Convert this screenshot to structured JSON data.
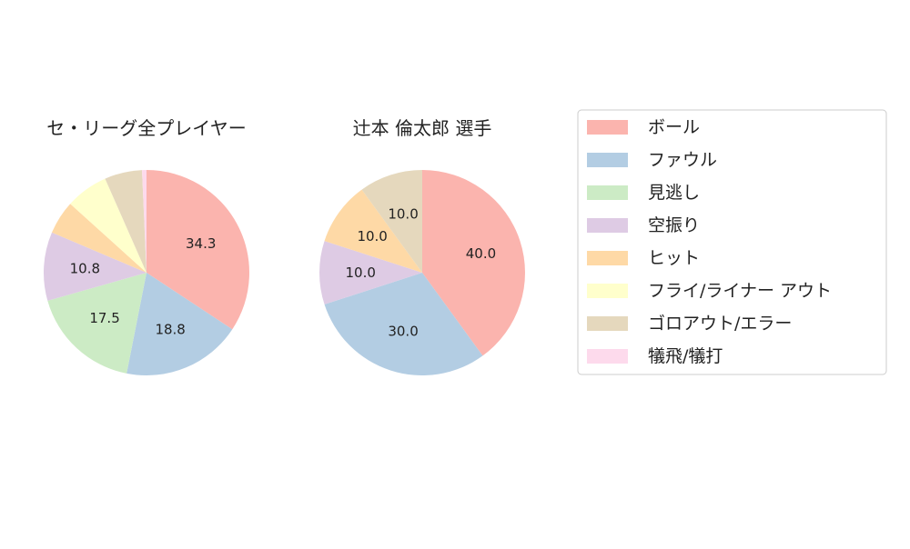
{
  "colors": {
    "ball": "#fbb4ae",
    "foul": "#b3cde3",
    "looking_strike": "#ccebc5",
    "swinging_strike": "#decbe4",
    "hit": "#fed9a6",
    "fly_liner_out": "#ffffcc",
    "ground_out_error": "#e5d8bd",
    "sacrifice": "#fddaec"
  },
  "legend": {
    "items": [
      {
        "label": "ボール",
        "color": "#fbb4ae"
      },
      {
        "label": "ファウル",
        "color": "#b3cde3"
      },
      {
        "label": "見逃し",
        "color": "#ccebc5"
      },
      {
        "label": "空振り",
        "color": "#decbe4"
      },
      {
        "label": "ヒット",
        "color": "#fed9a6"
      },
      {
        "label": "フライ/ライナー アウト",
        "color": "#ffffcc"
      },
      {
        "label": "ゴロアウト/エラー",
        "color": "#e5d8bd"
      },
      {
        "label": "犠飛/犠打",
        "color": "#fddaec"
      }
    ]
  },
  "chart_data": [
    {
      "type": "pie",
      "title": "セ・リーグ全プレイヤー",
      "categories": [
        "ボール",
        "ファウル",
        "見逃し",
        "空振り",
        "ヒット",
        "フライ/ライナー アウト",
        "ゴロアウト/エラー",
        "犠飛/犠打"
      ],
      "values": [
        34.3,
        18.8,
        17.5,
        10.8,
        5.3,
        6.7,
        5.9,
        0.7
      ],
      "data_labels": [
        "34.3",
        "18.8",
        "17.5",
        "10.8",
        "",
        "",
        "",
        ""
      ],
      "start_angle": "top, clockwise"
    },
    {
      "type": "pie",
      "title": "辻本 倫太郎  選手",
      "categories": [
        "ボール",
        "ファウル",
        "見逃し",
        "空振り",
        "ヒット",
        "フライ/ライナー アウト",
        "ゴロアウト/エラー",
        "犠飛/犠打"
      ],
      "values": [
        40.0,
        30.0,
        0,
        10.0,
        10.0,
        0,
        10.0,
        0
      ],
      "data_labels": [
        "40.0",
        "30.0",
        "",
        "10.0",
        "10.0",
        "",
        "10.0",
        ""
      ],
      "start_angle": "top, clockwise"
    }
  ]
}
